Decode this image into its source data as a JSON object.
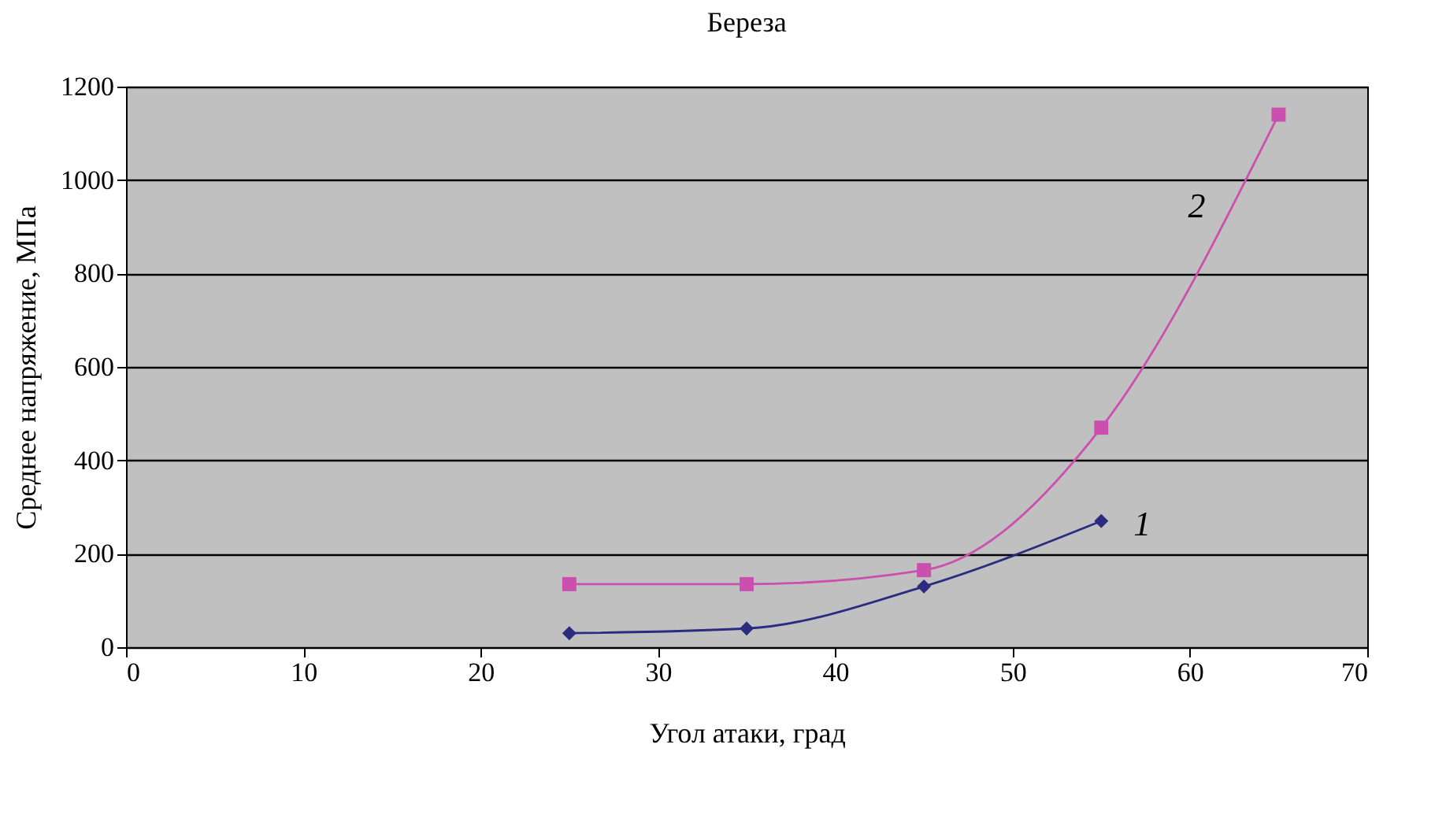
{
  "chart_data": {
    "type": "line",
    "title": "Береза",
    "xlabel": "Угол атаки, град",
    "ylabel": "Среднее напряжение, МПа",
    "x": [
      25,
      35,
      45,
      55,
      65
    ],
    "series": [
      {
        "name": "1",
        "color": "#2b2b80",
        "marker": "diamond",
        "values": [
          30,
          40,
          130,
          270,
          null
        ]
      },
      {
        "name": "2",
        "color": "#cc4fb0",
        "marker": "square",
        "values": [
          135,
          135,
          165,
          470,
          1140
        ]
      }
    ],
    "xlim": [
      0,
      70
    ],
    "xticks": [
      0,
      10,
      20,
      30,
      40,
      50,
      60,
      70
    ],
    "ylim": [
      0,
      1200
    ],
    "yticks": [
      0,
      200,
      400,
      600,
      800,
      1000,
      1200
    ],
    "grid": "y"
  }
}
